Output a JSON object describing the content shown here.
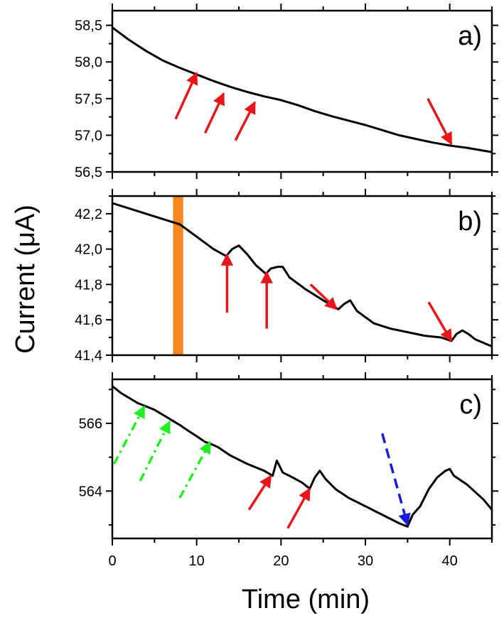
{
  "chart_data": {
    "type": "line",
    "xlabel": "Time (min)",
    "ylabel": "Current (μA)",
    "xlim": [
      0,
      45
    ],
    "xticks": [
      0,
      10,
      20,
      30,
      40
    ],
    "xtick_labels": [
      "0",
      "10",
      "20",
      "30",
      "40"
    ],
    "colors": {
      "trace": "#000000",
      "red_arrow": "#e8151b",
      "green_arrow": "#22ee22",
      "blue_arrow": "#1a1ae0",
      "highlight": "#f7861e"
    },
    "panels": [
      {
        "label": "a)",
        "ylim": [
          56.5,
          58.7
        ],
        "yticks": [
          56.5,
          57.0,
          57.5,
          58.0,
          58.5
        ],
        "ytick_labels": [
          "56,5",
          "57,0",
          "57,5",
          "58,0",
          "58,5"
        ],
        "series": [
          {
            "name": "current",
            "x": [
              0,
              2,
              4,
              6,
              8,
              10,
              12,
              14,
              16,
              18,
              20,
              22,
              24,
              26,
              28,
              30,
              32,
              34,
              36,
              38,
              40,
              42,
              44,
              45
            ],
            "y": [
              58.47,
              58.3,
              58.15,
              58.02,
              57.92,
              57.83,
              57.74,
              57.66,
              57.59,
              57.53,
              57.48,
              57.41,
              57.33,
              57.26,
              57.2,
              57.14,
              57.07,
              57.0,
              56.95,
              56.9,
              56.86,
              56.83,
              56.79,
              56.77
            ]
          }
        ],
        "arrows": [
          {
            "color": "red",
            "style": "solid",
            "from": [
              7.5,
              57.22
            ],
            "to": [
              10.0,
              57.85
            ]
          },
          {
            "color": "red",
            "style": "solid",
            "from": [
              11.0,
              57.03
            ],
            "to": [
              13.2,
              57.57
            ]
          },
          {
            "color": "red",
            "style": "solid",
            "from": [
              14.6,
              56.93
            ],
            "to": [
              16.9,
              57.45
            ]
          },
          {
            "color": "red",
            "style": "solid",
            "from": [
              37.4,
              57.5
            ],
            "to": [
              40.2,
              56.88
            ]
          }
        ]
      },
      {
        "label": "b)",
        "ylim": [
          41.4,
          42.3
        ],
        "yticks": [
          41.4,
          41.6,
          41.8,
          42.0,
          42.2
        ],
        "ytick_labels": [
          "41,4",
          "41,6",
          "41,8",
          "42,0",
          "42,2"
        ],
        "highlight_band": [
          7.2,
          8.4
        ],
        "series": [
          {
            "name": "current",
            "x": [
              0,
              2,
              4,
              6,
              8,
              10,
              12,
              13.5,
              14.2,
              15,
              16,
              17,
              18.2,
              18.8,
              19.6,
              20.2,
              21,
              23,
              25,
              26.8,
              27.5,
              28.2,
              29,
              31,
              33,
              35,
              37,
              39,
              40.2,
              40.8,
              41.5,
              42.2,
              43,
              44,
              45
            ],
            "y": [
              42.26,
              42.23,
              42.2,
              42.17,
              42.14,
              42.07,
              42.0,
              41.96,
              42.0,
              42.02,
              41.97,
              41.91,
              41.86,
              41.89,
              41.9,
              41.9,
              41.84,
              41.77,
              41.71,
              41.66,
              41.69,
              41.71,
              41.65,
              41.58,
              41.55,
              41.53,
              41.51,
              41.5,
              41.48,
              41.52,
              41.54,
              41.52,
              41.49,
              41.47,
              41.45
            ]
          }
        ],
        "arrows": [
          {
            "color": "red",
            "style": "solid",
            "from": [
              13.6,
              41.64
            ],
            "to": [
              13.6,
              41.97
            ]
          },
          {
            "color": "red",
            "style": "solid",
            "from": [
              18.3,
              41.55
            ],
            "to": [
              18.3,
              41.87
            ]
          },
          {
            "color": "red",
            "style": "solid",
            "from": [
              23.5,
              41.8
            ],
            "to": [
              26.6,
              41.66
            ]
          },
          {
            "color": "red",
            "style": "solid",
            "from": [
              37.5,
              41.7
            ],
            "to": [
              40.2,
              41.48
            ]
          }
        ]
      },
      {
        "label": "c)",
        "ylim": [
          562.6,
          567.3
        ],
        "yticks": [
          564,
          566
        ],
        "ytick_labels": [
          "564",
          "566"
        ],
        "series": [
          {
            "name": "current",
            "x": [
              0,
              1,
              2,
              3,
              4,
              5,
              6,
              7,
              8,
              9,
              10,
              11,
              11.6,
              12.5,
              14,
              16,
              18,
              19,
              19.5,
              20.2,
              21,
              22.5,
              23.4,
              24,
              24.6,
              25.3,
              26.5,
              28,
              30,
              32,
              34,
              35,
              35.6,
              36.5,
              37.5,
              38.5,
              39.5,
              40,
              40.5,
              42,
              44,
              45
            ],
            "y": [
              567.1,
              566.9,
              566.75,
              566.6,
              566.5,
              566.4,
              566.25,
              566.1,
              565.95,
              565.78,
              565.62,
              565.45,
              565.4,
              565.3,
              565.05,
              564.8,
              564.6,
              564.45,
              564.9,
              564.55,
              564.45,
              564.25,
              564.07,
              564.4,
              564.6,
              564.35,
              564.05,
              563.8,
              563.55,
              563.3,
              563.05,
              562.95,
              563.3,
              563.55,
              564.05,
              564.4,
              564.6,
              564.65,
              564.45,
              564.2,
              563.75,
              563.45
            ]
          }
        ],
        "arrows": [
          {
            "color": "green",
            "style": "dash-dot",
            "from": [
              0.2,
              564.8
            ],
            "to": [
              3.8,
              566.5
            ]
          },
          {
            "color": "green",
            "style": "dash-dot",
            "from": [
              3.3,
              564.3
            ],
            "to": [
              6.8,
              566.05
            ]
          },
          {
            "color": "green",
            "style": "dash-dot",
            "from": [
              8.0,
              563.8
            ],
            "to": [
              11.6,
              565.45
            ]
          },
          {
            "color": "red",
            "style": "solid",
            "from": [
              16.2,
              563.45
            ],
            "to": [
              18.8,
              564.45
            ]
          },
          {
            "color": "red",
            "style": "solid",
            "from": [
              20.8,
              562.9
            ],
            "to": [
              23.4,
              564.07
            ]
          },
          {
            "color": "blue",
            "style": "dashed",
            "from": [
              32.0,
              565.7
            ],
            "to": [
              35.0,
              563.0
            ]
          }
        ]
      }
    ]
  }
}
